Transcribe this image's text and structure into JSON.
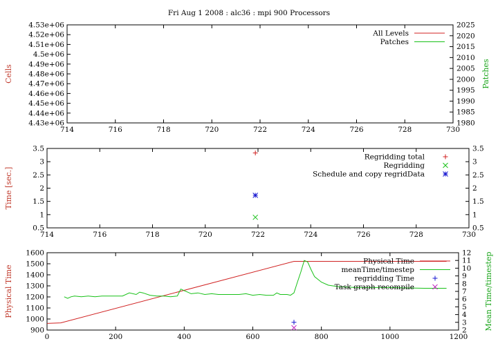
{
  "page_title": "Fri Aug 1 2008 : alc36 : mpi 900 Processors",
  "colors": {
    "red": "#d02020",
    "green": "#16c016",
    "blue": "#1515d0",
    "magenta": "#c020c0",
    "axis_title_left": "#c0392b",
    "axis_title_right": "#1aa51a"
  },
  "chart_data": [
    {
      "type": "line",
      "ylabel": "Cells",
      "y2label": "Patches",
      "xlim": [
        714,
        730
      ],
      "xticks": [
        "714",
        "716",
        "718",
        "720",
        "722",
        "724",
        "726",
        "728",
        "730"
      ],
      "ylim": [
        4430000,
        4530000
      ],
      "yticks": [
        "4.43e+06",
        "4.44e+06",
        "4.45e+06",
        "4.46e+06",
        "4.47e+06",
        "4.48e+06",
        "4.49e+06",
        "4.5e+06",
        "4.51e+06",
        "4.52e+06",
        "4.53e+06"
      ],
      "y2lim": [
        1980,
        2025
      ],
      "y2ticks": [
        "1980",
        "1985",
        "1990",
        "1995",
        "2000",
        "2005",
        "2010",
        "2015",
        "2020",
        "2025"
      ],
      "legend_position": "top-right",
      "series": [
        {
          "name": "All Levels",
          "color": "#d02020",
          "x": [],
          "y": []
        },
        {
          "name": "Patches",
          "color": "#16c016",
          "x": [],
          "y": []
        }
      ]
    },
    {
      "type": "scatter",
      "ylabel": "Time [sec.]",
      "xlim": [
        714,
        730
      ],
      "xticks": [
        "714",
        "716",
        "718",
        "720",
        "722",
        "724",
        "726",
        "728",
        "730"
      ],
      "ylim": [
        0.5,
        3.5
      ],
      "yticks": [
        "0.5",
        "1",
        "1.5",
        "2",
        "2.5",
        "3",
        "3.5"
      ],
      "y2lim": [
        0.5,
        3.5
      ],
      "y2ticks": [
        "0.5",
        "1",
        "1.5",
        "2",
        "2.5",
        "3",
        "3.5"
      ],
      "legend_position": "top-right",
      "series": [
        {
          "name": "Regridding total",
          "color": "#d02020",
          "marker": "plus",
          "x": [
            721.9
          ],
          "y": [
            3.33
          ]
        },
        {
          "name": "Regridding",
          "color": "#16c016",
          "marker": "cross",
          "x": [
            721.9
          ],
          "y": [
            0.9
          ]
        },
        {
          "name": "Schedule and copy regridData",
          "color": "#1515d0",
          "marker": "star",
          "x": [
            721.9
          ],
          "y": [
            1.73
          ]
        }
      ]
    },
    {
      "type": "line",
      "ylabel": "Physical Time",
      "y2label": "Mean Time/timestep",
      "xlim": [
        0,
        1200
      ],
      "xticks": [
        "0",
        "200",
        "400",
        "600",
        "800",
        "1000",
        "1200"
      ],
      "ylim": [
        900,
        1600
      ],
      "yticks": [
        "900",
        "1000",
        "1100",
        "1200",
        "1300",
        "1400",
        "1500",
        "1600"
      ],
      "y2lim": [
        2,
        12
      ],
      "y2ticks": [
        "2",
        "3",
        "4",
        "5",
        "6",
        "7",
        "8",
        "9",
        "10",
        "11",
        "12"
      ],
      "legend_position": "top-right",
      "series": [
        {
          "name": "Physical Time",
          "color": "#d02020",
          "axis": "y",
          "marker": "line",
          "x": [
            0,
            40,
            720,
            1165
          ],
          "y": [
            960,
            965,
            1522,
            1522
          ]
        },
        {
          "name": "meanTime/timestep",
          "color": "#16c016",
          "axis": "y2",
          "marker": "line",
          "x": [
            50,
            60,
            70,
            80,
            100,
            120,
            140,
            160,
            180,
            200,
            220,
            240,
            260,
            270,
            280,
            300,
            320,
            340,
            360,
            380,
            390,
            400,
            410,
            420,
            440,
            460,
            480,
            500,
            520,
            540,
            560,
            580,
            600,
            620,
            640,
            660,
            670,
            680,
            700,
            710,
            720,
            730,
            740,
            750,
            760,
            770,
            780,
            800,
            820,
            850,
            900,
            950,
            1000,
            1050,
            1100,
            1150,
            1165
          ],
          "y": [
            6.3,
            6.1,
            6.3,
            6.4,
            6.3,
            6.4,
            6.3,
            6.4,
            6.4,
            6.4,
            6.4,
            6.8,
            6.6,
            6.9,
            6.8,
            6.5,
            6.4,
            6.4,
            6.3,
            6.4,
            7.3,
            7.1,
            6.9,
            6.7,
            6.8,
            6.6,
            6.7,
            6.6,
            6.6,
            6.6,
            6.6,
            6.7,
            6.5,
            6.6,
            6.5,
            6.5,
            6.8,
            6.6,
            6.6,
            6.5,
            6.8,
            8.2,
            9.5,
            11.0,
            10.8,
            9.8,
            8.9,
            8.2,
            7.8,
            7.6,
            7.5,
            7.5,
            7.5,
            7.45,
            7.4,
            7.4,
            7.4
          ]
        },
        {
          "name": "regridding Time",
          "color": "#1515d0",
          "axis": "y2",
          "marker": "plus",
          "x": [
            720
          ],
          "y": [
            3.0
          ]
        },
        {
          "name": "Task graph recompile",
          "color": "#c020c0",
          "axis": "y2",
          "marker": "cross",
          "x": [
            720
          ],
          "y": [
            2.3
          ]
        }
      ]
    }
  ]
}
